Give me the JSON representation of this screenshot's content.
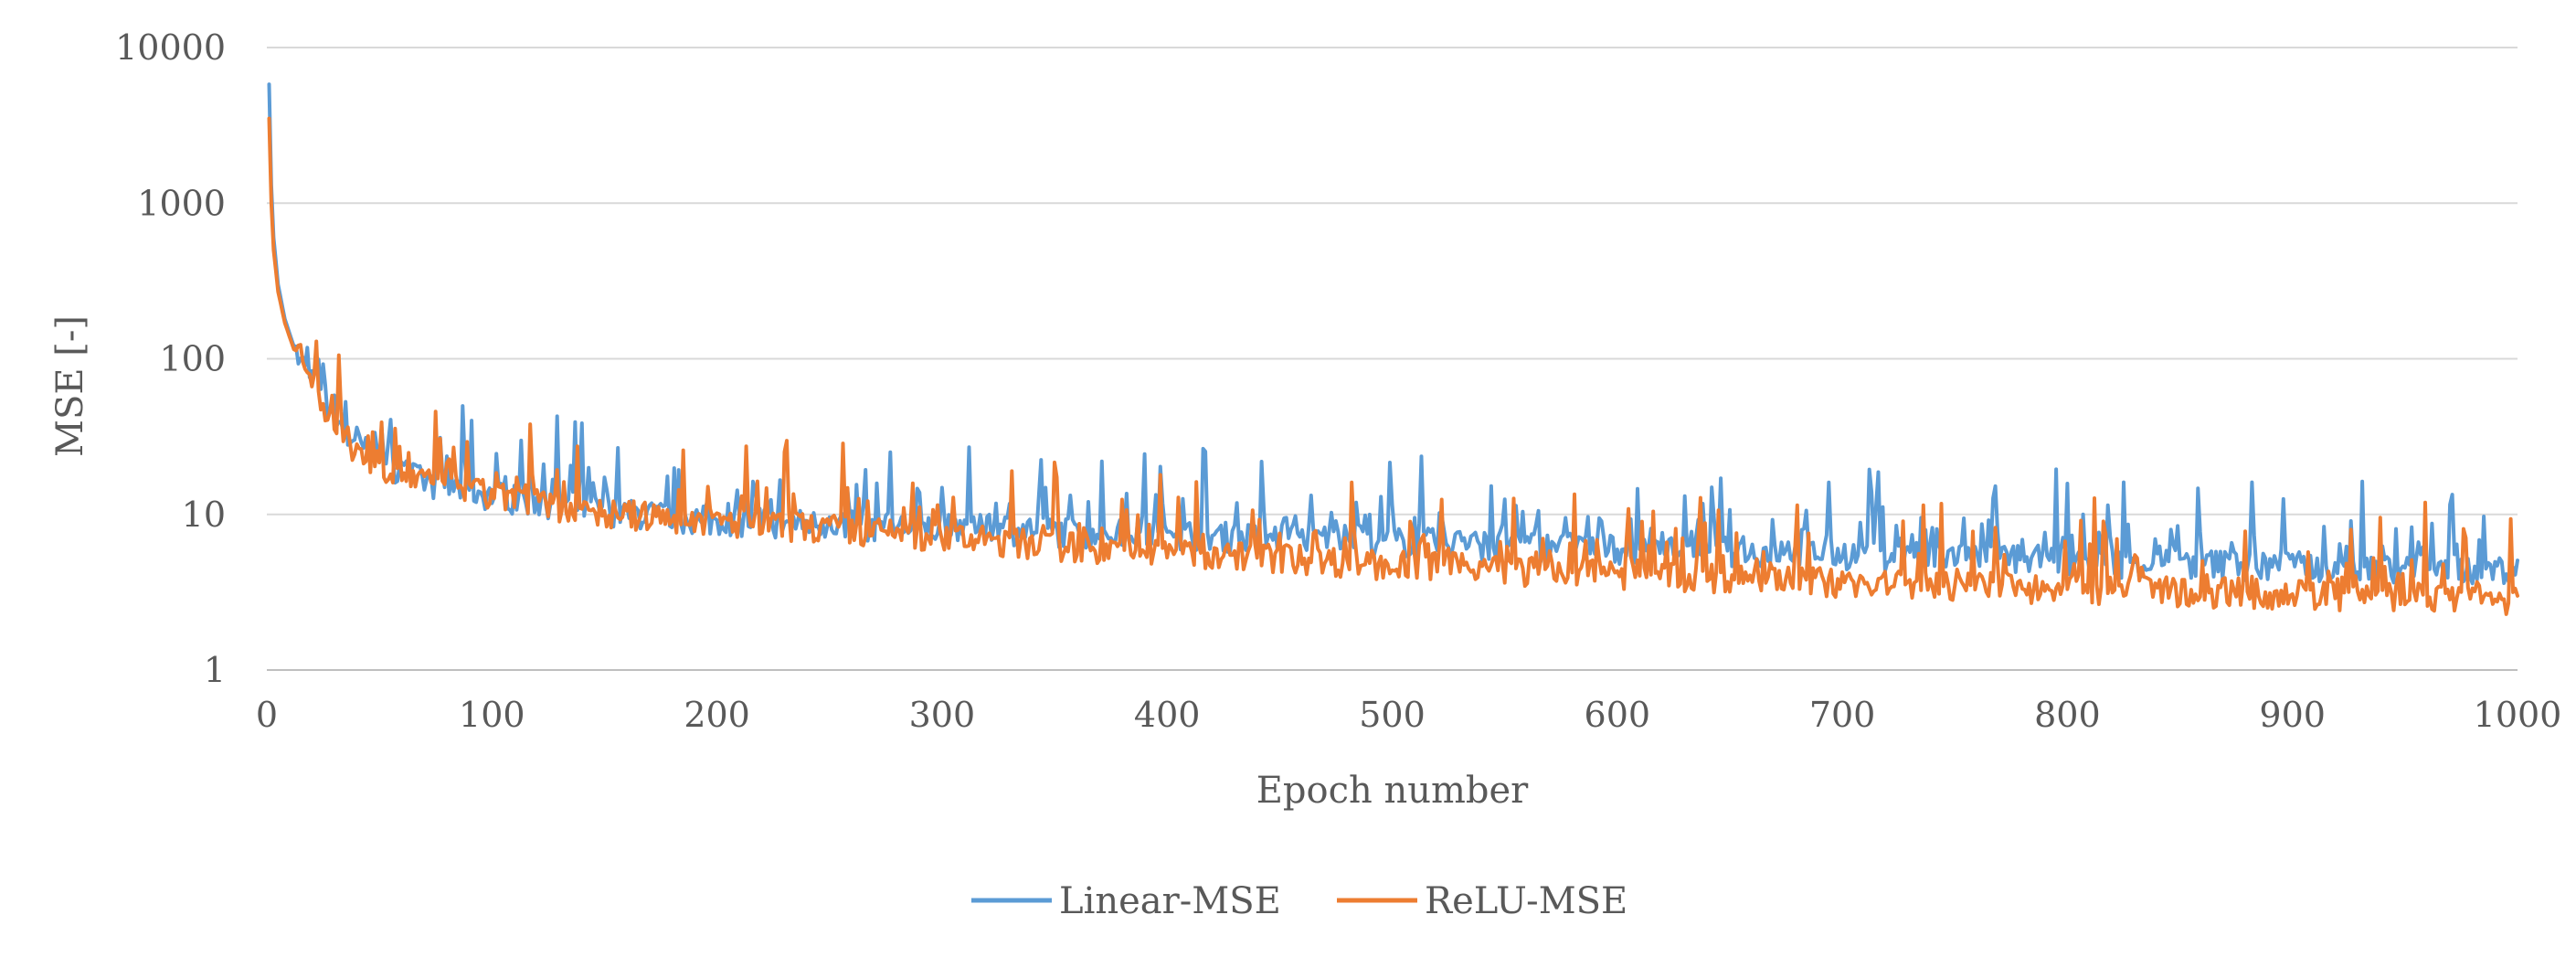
{
  "chart_data": {
    "type": "line",
    "title": "",
    "xlabel": "Epoch number",
    "ylabel": "MSE [-]",
    "yscale": "log",
    "xlim": [
      0,
      1000
    ],
    "ylim": [
      1,
      10000
    ],
    "x_ticks": [
      "0",
      "100",
      "200",
      "300",
      "400",
      "500",
      "600",
      "700",
      "800",
      "900",
      "1000"
    ],
    "y_ticks": [
      "1",
      "10",
      "100",
      "1000",
      "10000"
    ],
    "grid": "horizontal",
    "legend_position": "bottom",
    "x": [
      1,
      2,
      3,
      5,
      8,
      12,
      16,
      20,
      25,
      30,
      35,
      40,
      50,
      60,
      70,
      80,
      90,
      100,
      110,
      120,
      130,
      140,
      150,
      160,
      170,
      180,
      190,
      200,
      220,
      240,
      260,
      280,
      300,
      320,
      340,
      360,
      380,
      400,
      420,
      440,
      460,
      480,
      500,
      520,
      540,
      560,
      580,
      600,
      620,
      640,
      660,
      680,
      700,
      720,
      740,
      760,
      780,
      800,
      820,
      840,
      860,
      880,
      900,
      920,
      940,
      960,
      980,
      1000
    ],
    "series": [
      {
        "name": "Linear-MSE",
        "color": "#5b9bd5",
        "values": [
          5800,
          1300,
          600,
          300,
          180,
          120,
          90,
          75,
          55,
          42,
          33,
          28,
          22,
          19,
          16,
          15,
          14,
          13,
          12.5,
          12,
          11.5,
          11,
          10.5,
          10,
          9.8,
          9.5,
          9.2,
          9,
          8.8,
          8.6,
          8.4,
          8.2,
          8,
          8,
          7.8,
          7.6,
          7.5,
          7.4,
          7.2,
          7,
          7,
          6.8,
          6.6,
          6.5,
          6.3,
          6.2,
          6.1,
          6,
          5.9,
          5.8,
          5.7,
          5.6,
          5.5,
          5.4,
          5.3,
          5.2,
          5.1,
          5,
          4.9,
          4.8,
          4.8,
          4.7,
          4.6,
          4.6,
          4.5,
          4.5,
          4.4,
          4.4
        ]
      },
      {
        "name": "ReLU-MSE",
        "color": "#ed7d31",
        "values": [
          3500,
          1000,
          500,
          270,
          170,
          115,
          88,
          72,
          52,
          38,
          30,
          26,
          21,
          18,
          16,
          15,
          14,
          13,
          12,
          11.5,
          11,
          10.5,
          10,
          9.8,
          9.6,
          9.3,
          9,
          8.8,
          8.5,
          8.2,
          7.8,
          7.4,
          7,
          6.7,
          6.4,
          6.1,
          5.9,
          5.7,
          5.5,
          5.3,
          5.1,
          4.9,
          4.7,
          4.6,
          4.4,
          4.3,
          4.2,
          4.1,
          4,
          3.9,
          3.8,
          3.7,
          3.6,
          3.5,
          3.45,
          3.4,
          3.35,
          3.3,
          3.25,
          3.2,
          3.15,
          3.1,
          3.05,
          3,
          2.95,
          2.9,
          2.85,
          2.8
        ]
      }
    ],
    "noise_seed": 7
  }
}
